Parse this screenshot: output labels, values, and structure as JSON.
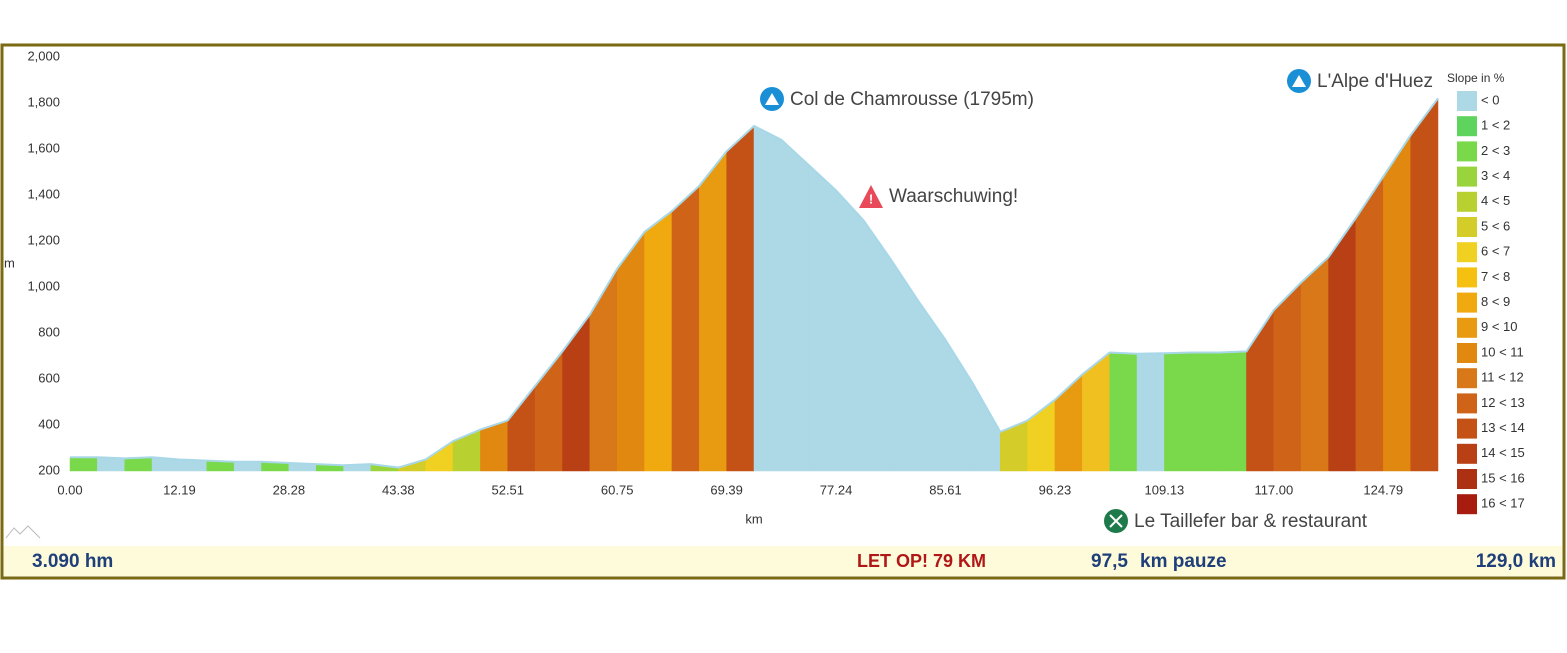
{
  "chart_data": {
    "type": "area",
    "y_label": "m",
    "x_label": "km",
    "categories": [
      "0.00",
      null,
      null,
      null,
      "12.19",
      null,
      null,
      null,
      "28.28",
      null,
      null,
      null,
      "43.38",
      null,
      null,
      null,
      "52.51",
      null,
      null,
      null,
      "60.75",
      null,
      null,
      null,
      "69.39",
      null,
      null,
      null,
      "77.24",
      null,
      null,
      null,
      "85.61",
      null,
      null,
      null,
      "96.23",
      null,
      null,
      null,
      "109.13",
      null,
      null,
      null,
      "117.00",
      null,
      null,
      null,
      "124.79",
      null,
      null
    ],
    "values": [
      260,
      260,
      255,
      260,
      250,
      245,
      240,
      240,
      235,
      230,
      225,
      230,
      215,
      250,
      330,
      380,
      420,
      570,
      720,
      880,
      1080,
      1240,
      1330,
      1440,
      1590,
      1700,
      1640,
      1530,
      1420,
      1290,
      1120,
      940,
      770,
      580,
      370,
      420,
      510,
      620,
      715,
      710,
      712,
      715,
      715,
      720,
      900,
      1020,
      1130,
      1300,
      1480,
      1660,
      1820
    ],
    "segment_colors": [
      "#7ad94a",
      "#add8e6",
      "#7ad94a",
      "#add8e6",
      "#add8e6",
      "#7ad94a",
      "#add8e6",
      "#7ad94a",
      "#add8e6",
      "#7ad94a",
      "#add8e6",
      "#9ad43c",
      "#d4cc28",
      "#f0d020",
      "#b8d030",
      "#e08810",
      "#c45216",
      "#cf6418",
      "#b84014",
      "#d87818",
      "#e08810",
      "#f0aa10",
      "#cf6418",
      "#e89a10",
      "#c45216",
      "#add8e6",
      "#add8e6",
      "#add8e6",
      "#add8e6",
      "#add8e6",
      "#add8e6",
      "#add8e6",
      "#add8e6",
      "#add8e6",
      "#d4cc28",
      "#f0d020",
      "#e89a10",
      "#f0c020",
      "#7ad94a",
      "#add8e6",
      "#7ad94a",
      "#7ad94a",
      "#7ad94a",
      "#c45216",
      "#cf6418",
      "#d87818",
      "#b84014",
      "#cf6418",
      "#e08810",
      "#c45216"
    ],
    "line_color": "#a8d8e8",
    "ylim": [
      200,
      2000
    ],
    "yticks": [
      200,
      400,
      600,
      800,
      {
        "value": 1000,
        "label": "1,000"
      },
      {
        "value": 1200,
        "label": "1,200"
      },
      {
        "value": 1400,
        "label": "1,400"
      },
      {
        "value": 1600,
        "label": "1,600"
      },
      {
        "value": 1800,
        "label": "1,800"
      },
      {
        "value": 2000,
        "label": "2,000"
      }
    ],
    "legend": {
      "title": "Slope in %",
      "items": [
        {
          "label": "< 0",
          "color": "#add8e6"
        },
        {
          "label": "1 < 2",
          "color": "#5ed35e"
        },
        {
          "label": "2 < 3",
          "color": "#7ad94a"
        },
        {
          "label": "3 < 4",
          "color": "#9ad43c"
        },
        {
          "label": "4 < 5",
          "color": "#b8d030"
        },
        {
          "label": "5 < 6",
          "color": "#d4cc28"
        },
        {
          "label": "6 < 7",
          "color": "#f0d020"
        },
        {
          "label": "7 < 8",
          "color": "#f5c010"
        },
        {
          "label": "8 < 9",
          "color": "#f0aa10"
        },
        {
          "label": "9 < 10",
          "color": "#e89a10"
        },
        {
          "label": "10 < 11",
          "color": "#e08810"
        },
        {
          "label": "11 < 12",
          "color": "#d87818"
        },
        {
          "label": "12 < 13",
          "color": "#cf6418"
        },
        {
          "label": "13 < 14",
          "color": "#c45216"
        },
        {
          "label": "14 < 15",
          "color": "#b84014"
        },
        {
          "label": "15 < 16",
          "color": "#ae3012"
        },
        {
          "label": "16 < 17",
          "color": "#a81c10"
        }
      ]
    },
    "annotations": [
      "Col de Chamrousse (1795m)",
      "Waarschuwing!",
      "L'Alpe d'Huez",
      "Le Taillefer bar & restaurant"
    ]
  },
  "footer": {
    "climb": "3.090 hm",
    "warning": "LET OP! 79 KM",
    "pause_value": "97,5",
    "pause_text": "km pauze",
    "total": "129,0 km"
  }
}
